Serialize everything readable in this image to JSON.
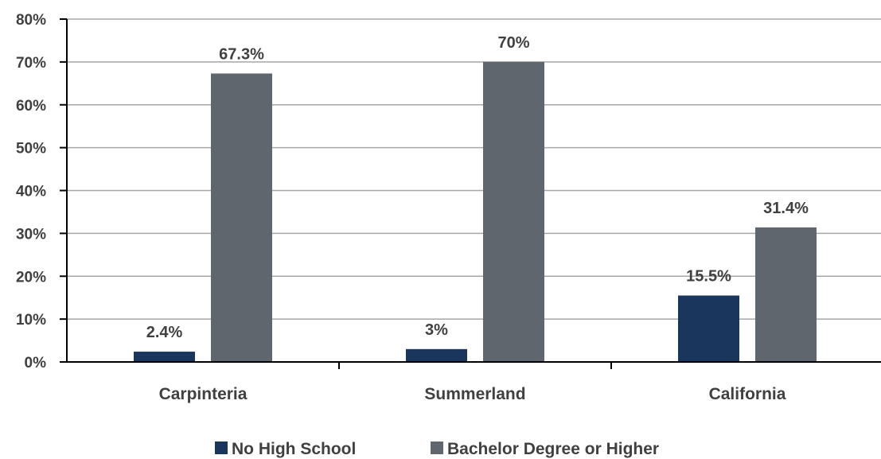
{
  "chart_data": {
    "type": "bar",
    "categories": [
      "Carpinteria",
      "Summerland",
      "California"
    ],
    "series": [
      {
        "name": "No High School",
        "values": [
          2.4,
          3.0,
          15.5
        ],
        "labels": [
          "2.4%",
          "3%",
          "15.5%"
        ],
        "color": "#1b365d"
      },
      {
        "name": "Bachelor Degree or Higher",
        "values": [
          67.3,
          70.0,
          31.4
        ],
        "labels": [
          "67.3%",
          "70%",
          "31.4%"
        ],
        "color": "#5f666d"
      }
    ],
    "ylim": [
      0,
      80
    ],
    "yticks": [
      0,
      10,
      20,
      30,
      40,
      50,
      60,
      70,
      80
    ],
    "ytick_labels": [
      "0%",
      "10%",
      "20%",
      "30%",
      "40%",
      "50%",
      "60%",
      "70%",
      "80%"
    ],
    "title": "",
    "xlabel": "",
    "ylabel": "",
    "grid": true,
    "legend_position": "bottom"
  }
}
